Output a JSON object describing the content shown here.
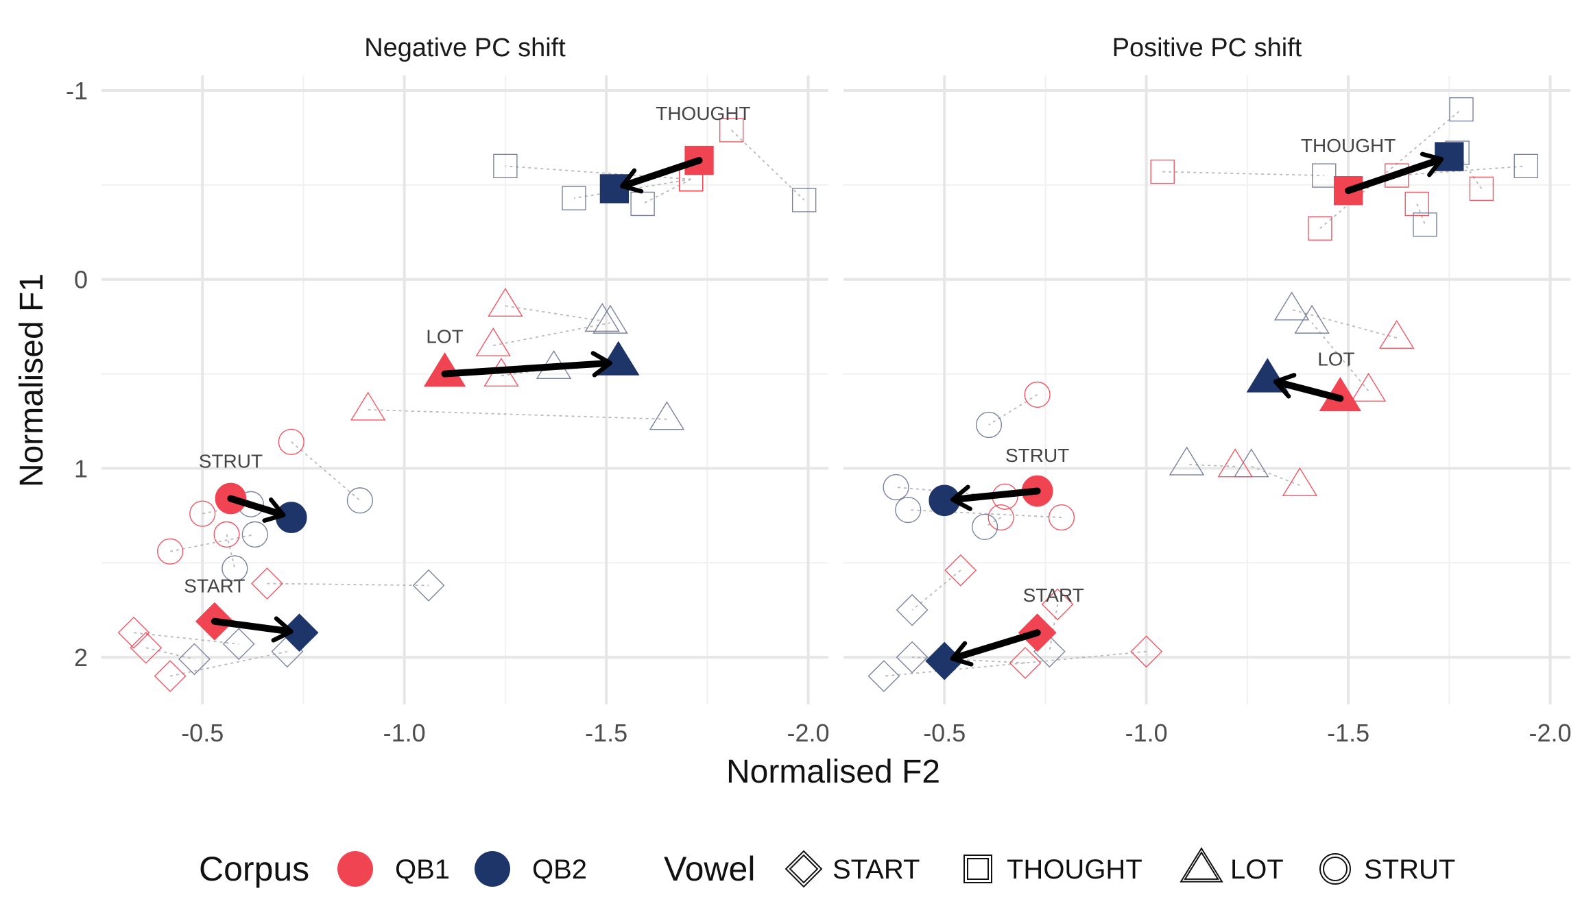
{
  "chart_data": {
    "type": "scatter",
    "xlabel": "Normalised F2",
    "ylabel": "Normalised F1",
    "x_ticks": [
      -0.5,
      -1.0,
      -1.5,
      -2.0
    ],
    "x_tick_labels": [
      "-0.5",
      "-1.0",
      "-1.5",
      "-2.0"
    ],
    "y_ticks": [
      -1,
      0,
      1,
      2
    ],
    "y_tick_labels": [
      "-1",
      "0",
      "1",
      "2"
    ],
    "xlim": [
      -0.25,
      -2.05
    ],
    "ylim": [
      -1.08,
      2.25
    ],
    "x_reversed": true,
    "y_reversed": true,
    "grid": true,
    "legend_position": "bottom",
    "colors": {
      "QB1": "#f04452",
      "QB2": "#1e3569",
      "arrow": "#000000",
      "connector": "#b8b8b8"
    },
    "legend": {
      "corpus_title": "Corpus",
      "corpus_items": [
        {
          "key": "QB1",
          "label": "QB1"
        },
        {
          "key": "QB2",
          "label": "QB2"
        }
      ],
      "vowel_title": "Vowel",
      "vowel_items": [
        {
          "shape": "diamond",
          "label": "START"
        },
        {
          "shape": "square",
          "label": "THOUGHT"
        },
        {
          "shape": "triangle",
          "label": "LOT"
        },
        {
          "shape": "circle",
          "label": "STRUT"
        }
      ]
    },
    "panels": [
      {
        "title": "Negative PC shift",
        "means": [
          {
            "vowel": "THOUGHT",
            "label": "THOUGHT",
            "shape": "square",
            "qb1": [
              -1.73,
              -0.63
            ],
            "qb2": [
              -1.52,
              -0.48
            ],
            "label_pos": [
              -1.74,
              -0.88
            ]
          },
          {
            "vowel": "LOT",
            "label": "LOT",
            "shape": "triangle",
            "qb1": [
              -1.1,
              0.5
            ],
            "qb2": [
              -1.53,
              0.44
            ],
            "label_pos": [
              -1.1,
              0.3
            ]
          },
          {
            "vowel": "STRUT",
            "label": "STRUT",
            "shape": "circle",
            "qb1": [
              -0.57,
              1.16
            ],
            "qb2": [
              -0.72,
              1.26
            ],
            "label_pos": [
              -0.57,
              0.96
            ]
          },
          {
            "vowel": "START",
            "label": "START",
            "shape": "diamond",
            "qb1": [
              -0.53,
              1.81
            ],
            "qb2": [
              -0.74,
              1.87
            ],
            "label_pos": [
              -0.53,
              1.62
            ]
          }
        ],
        "speakers": [
          {
            "shape": "square",
            "qb1": [
              -1.81,
              -0.79
            ],
            "qb2": [
              -1.99,
              -0.42
            ]
          },
          {
            "shape": "square",
            "qb1": [
              -1.71,
              -0.53
            ],
            "qb2": [
              -1.25,
              -0.6
            ]
          },
          {
            "shape": "square",
            "qb1": [
              -1.71,
              -0.53
            ],
            "qb2": [
              -1.59,
              -0.4
            ]
          },
          {
            "shape": "square",
            "qb1": [
              -1.71,
              -0.53
            ],
            "qb2": [
              -1.42,
              -0.43
            ]
          },
          {
            "shape": "triangle",
            "qb1": [
              -1.25,
              0.14
            ],
            "qb2": [
              -1.49,
              0.22
            ]
          },
          {
            "shape": "triangle",
            "qb1": [
              -1.22,
              0.35
            ],
            "qb2": [
              -1.51,
              0.23
            ]
          },
          {
            "shape": "triangle",
            "qb1": [
              -1.24,
              0.51
            ],
            "qb2": [
              -1.37,
              0.47
            ]
          },
          {
            "shape": "triangle",
            "qb1": [
              -0.91,
              0.69
            ],
            "qb2": [
              -1.65,
              0.74
            ]
          },
          {
            "shape": "circle",
            "qb1": [
              -0.72,
              0.86
            ],
            "qb2": [
              -0.89,
              1.17
            ]
          },
          {
            "shape": "circle",
            "qb1": [
              -0.5,
              1.24
            ],
            "qb2": [
              -0.62,
              1.19
            ]
          },
          {
            "shape": "circle",
            "qb1": [
              -0.42,
              1.44
            ],
            "qb2": [
              -0.63,
              1.35
            ]
          },
          {
            "shape": "circle",
            "qb1": [
              -0.56,
              1.35
            ],
            "qb2": [
              -0.58,
              1.53
            ]
          },
          {
            "shape": "diamond",
            "qb1": [
              -0.66,
              1.61
            ],
            "qb2": [
              -1.06,
              1.62
            ]
          },
          {
            "shape": "diamond",
            "qb1": [
              -0.33,
              1.87
            ],
            "qb2": [
              -0.59,
              1.93
            ]
          },
          {
            "shape": "diamond",
            "qb1": [
              -0.36,
              1.95
            ],
            "qb2": [
              -0.48,
              2.01
            ]
          },
          {
            "shape": "diamond",
            "qb1": [
              -0.42,
              2.1
            ],
            "qb2": [
              -0.71,
              1.97
            ]
          }
        ]
      },
      {
        "title": "Positive PC shift",
        "means": [
          {
            "vowel": "THOUGHT",
            "label": "THOUGHT",
            "shape": "square",
            "qb1": [
              -1.5,
              -0.47
            ],
            "qb2": [
              -1.75,
              -0.65
            ],
            "label_pos": [
              -1.5,
              -0.71
            ]
          },
          {
            "vowel": "LOT",
            "label": "LOT",
            "shape": "triangle",
            "qb1": [
              -1.48,
              0.63
            ],
            "qb2": [
              -1.3,
              0.53
            ],
            "label_pos": [
              -1.47,
              0.42
            ]
          },
          {
            "vowel": "STRUT",
            "label": "STRUT",
            "shape": "circle",
            "qb1": [
              -0.73,
              1.12
            ],
            "qb2": [
              -0.5,
              1.17
            ],
            "label_pos": [
              -0.73,
              0.93
            ]
          },
          {
            "vowel": "START",
            "label": "START",
            "shape": "diamond",
            "qb1": [
              -0.73,
              1.87
            ],
            "qb2": [
              -0.5,
              2.02
            ],
            "label_pos": [
              -0.77,
              1.67
            ]
          }
        ],
        "speakers": [
          {
            "shape": "square",
            "qb1": [
              -1.04,
              -0.57
            ],
            "qb2": [
              -1.44,
              -0.55
            ]
          },
          {
            "shape": "square",
            "qb1": [
              -1.43,
              -0.27
            ],
            "qb2": [
              -1.78,
              -0.9
            ]
          },
          {
            "shape": "square",
            "qb1": [
              -1.62,
              -0.55
            ],
            "qb2": [
              -1.94,
              -0.6
            ]
          },
          {
            "shape": "square",
            "qb1": [
              -1.67,
              -0.4
            ],
            "qb2": [
              -1.69,
              -0.29
            ]
          },
          {
            "shape": "square",
            "qb1": [
              -1.83,
              -0.48
            ],
            "qb2": [
              -1.77,
              -0.67
            ]
          },
          {
            "shape": "triangle",
            "qb1": [
              -1.62,
              0.31
            ],
            "qb2": [
              -1.36,
              0.16
            ]
          },
          {
            "shape": "triangle",
            "qb1": [
              -1.55,
              0.59
            ],
            "qb2": [
              -1.41,
              0.23
            ]
          },
          {
            "shape": "triangle",
            "qb1": [
              -1.38,
              1.09
            ],
            "qb2": [
              -1.26,
              0.99
            ]
          },
          {
            "shape": "triangle",
            "qb1": [
              -1.22,
              0.99
            ],
            "qb2": [
              -1.1,
              0.98
            ]
          },
          {
            "shape": "circle",
            "qb1": [
              -0.73,
              0.61
            ],
            "qb2": [
              -0.61,
              0.77
            ]
          },
          {
            "shape": "circle",
            "qb1": [
              -0.65,
              1.15
            ],
            "qb2": [
              -0.38,
              1.1
            ]
          },
          {
            "shape": "circle",
            "qb1": [
              -0.64,
              1.26
            ],
            "qb2": [
              -0.6,
              1.31
            ]
          },
          {
            "shape": "circle",
            "qb1": [
              -0.79,
              1.26
            ],
            "qb2": [
              -0.41,
              1.22
            ]
          },
          {
            "shape": "diamond",
            "qb1": [
              -0.54,
              1.54
            ],
            "qb2": [
              -0.42,
              1.75
            ]
          },
          {
            "shape": "diamond",
            "qb1": [
              -0.78,
              1.72
            ],
            "qb2": [
              -0.76,
              1.97
            ]
          },
          {
            "shape": "diamond",
            "qb1": [
              -1.0,
              1.97
            ],
            "qb2": [
              -0.35,
              2.1
            ]
          },
          {
            "shape": "diamond",
            "qb1": [
              -0.7,
              2.03
            ],
            "qb2": [
              -0.42,
              2.0
            ]
          }
        ]
      }
    ]
  }
}
